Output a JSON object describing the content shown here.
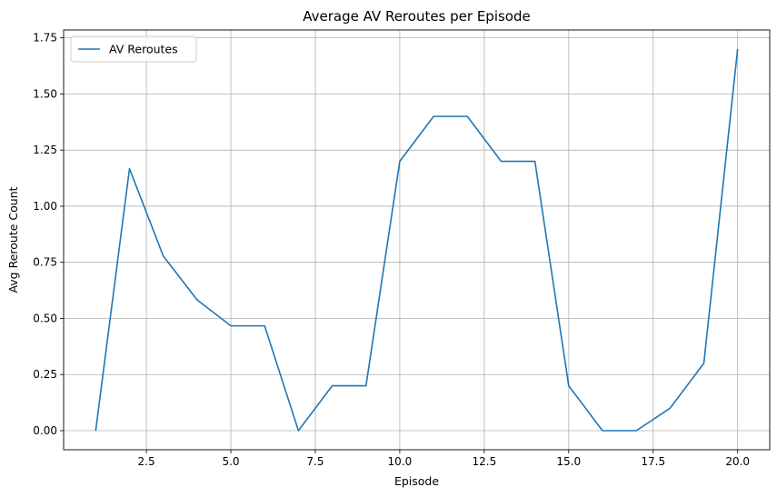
{
  "chart_data": {
    "type": "line",
    "title": "Average AV Reroutes per Episode",
    "xlabel": "Episode",
    "ylabel": "Avg Reroute Count",
    "xlim": [
      0.05,
      20.95
    ],
    "ylim": [
      -0.085,
      1.785
    ],
    "xticks": [
      2.5,
      5.0,
      7.5,
      10.0,
      12.5,
      15.0,
      17.5,
      20.0
    ],
    "xtick_labels": [
      "2.5",
      "5.0",
      "7.5",
      "10.0",
      "12.5",
      "15.0",
      "17.5",
      "20.0"
    ],
    "yticks": [
      0.0,
      0.25,
      0.5,
      0.75,
      1.0,
      1.25,
      1.5,
      1.75
    ],
    "ytick_labels": [
      "0.00",
      "0.25",
      "0.50",
      "0.75",
      "1.00",
      "1.25",
      "1.50",
      "1.75"
    ],
    "grid": true,
    "legend_position": "top-left",
    "series": [
      {
        "name": "AV Reroutes",
        "color": "#1f77b4",
        "x": [
          1,
          2,
          3,
          4,
          5,
          6,
          7,
          8,
          9,
          10,
          11,
          12,
          13,
          14,
          15,
          16,
          17,
          18,
          19,
          20
        ],
        "y": [
          0.0,
          1.167,
          0.778,
          0.583,
          0.467,
          0.467,
          0.0,
          0.2,
          0.2,
          1.2,
          1.4,
          1.4,
          1.2,
          1.2,
          0.2,
          0.0,
          0.0,
          0.1,
          0.3,
          1.7
        ]
      }
    ]
  }
}
